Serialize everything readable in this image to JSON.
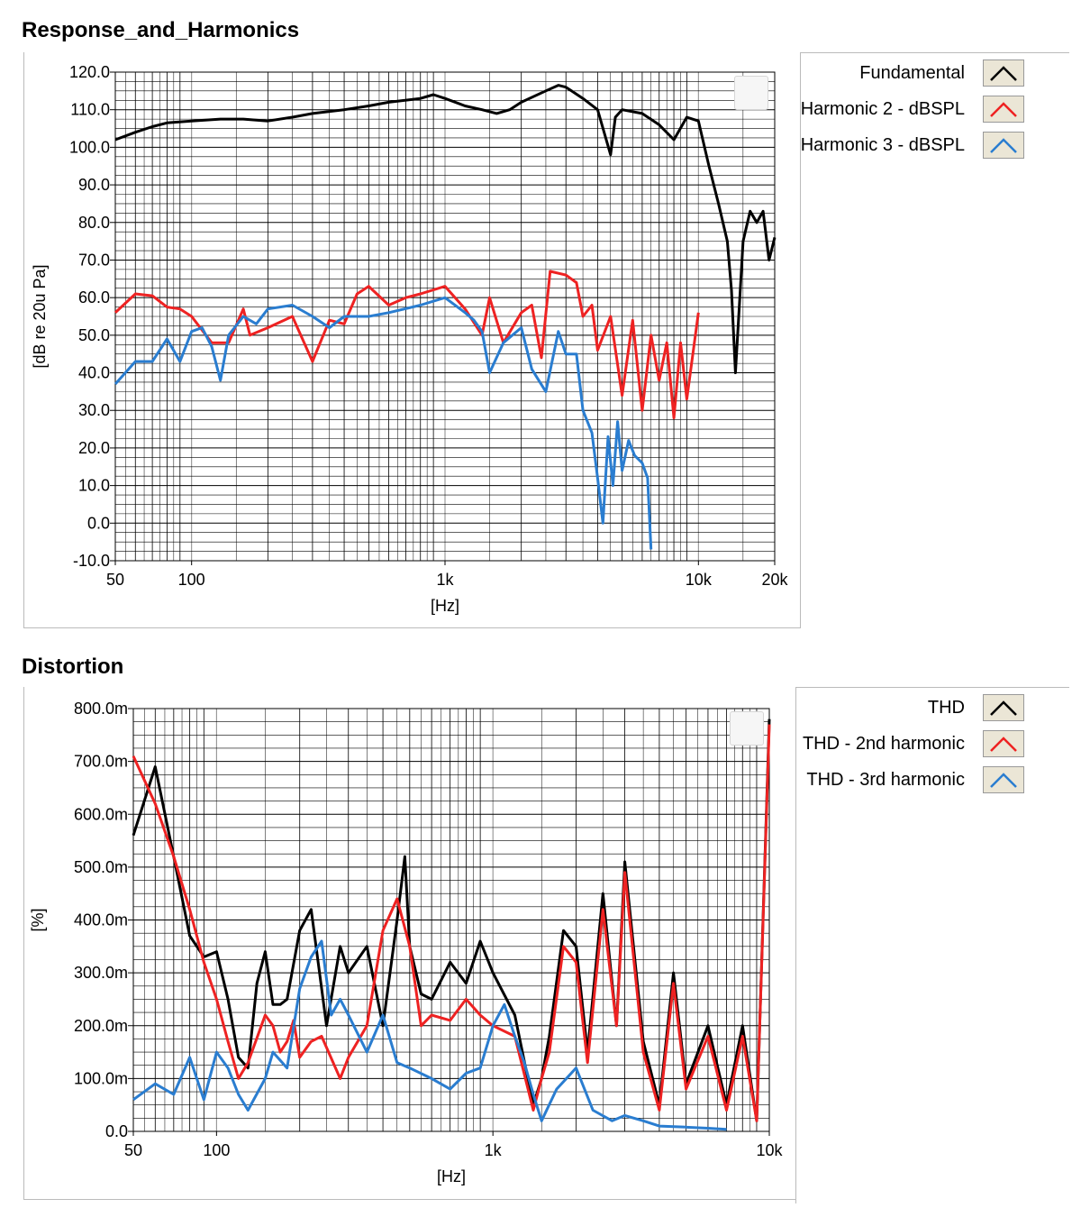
{
  "colors": {
    "black": "#000000",
    "red": "#ee2222",
    "blue": "#2a7dd0",
    "grid": "#000000"
  },
  "charts": [
    {
      "title": "Response_and_Harmonics",
      "ylabel": "[dB re 20u Pa]",
      "xlabel": "[Hz]",
      "legend": [
        "Fundamental",
        "Harmonic 2 - dBSPL",
        "Harmonic 3 - dBSPL"
      ]
    },
    {
      "title": "Distortion",
      "ylabel": "[%]",
      "xlabel": "[Hz]",
      "legend": [
        "THD",
        "THD - 2nd harmonic",
        "THD - 3rd harmonic"
      ]
    }
  ],
  "chart_data": [
    {
      "type": "line",
      "title": "Response_and_Harmonics",
      "xlabel": "[Hz]",
      "ylabel": "[dB re 20u Pa]",
      "xscale": "log",
      "xlim": [
        50,
        20000
      ],
      "ylim": [
        -10,
        120
      ],
      "xticks": [
        50,
        100,
        1000,
        10000,
        20000
      ],
      "xtick_labels": [
        "50",
        "100",
        "1k",
        "10k",
        "20k"
      ],
      "yticks": [
        -10,
        0,
        10,
        20,
        30,
        40,
        50,
        60,
        70,
        80,
        90,
        100,
        110,
        120
      ],
      "ytick_labels": [
        "-10.0",
        "0.0",
        "10.0",
        "20.0",
        "30.0",
        "40.0",
        "50.0",
        "60.0",
        "70.0",
        "80.0",
        "90.0",
        "100.0",
        "110.0",
        "120.0"
      ],
      "grid": true,
      "legend_position": "right",
      "series": [
        {
          "name": "Fundamental",
          "color": "#000000",
          "x": [
            50,
            60,
            70,
            80,
            100,
            130,
            160,
            200,
            250,
            300,
            400,
            500,
            600,
            800,
            900,
            1000,
            1200,
            1400,
            1600,
            1800,
            2000,
            2500,
            2800,
            3000,
            3500,
            4000,
            4500,
            4700,
            5000,
            6000,
            7000,
            8000,
            9000,
            10000,
            11000,
            12000,
            13000,
            13500,
            14000,
            15000,
            16000,
            17000,
            18000,
            19000,
            20000
          ],
          "y": [
            102,
            104,
            105.5,
            106.5,
            107,
            107.5,
            107.5,
            107,
            108,
            109,
            110,
            111,
            112,
            113,
            114,
            113,
            111,
            110,
            109,
            110,
            112,
            115,
            116.5,
            116,
            113,
            110,
            98,
            108,
            110,
            109,
            106,
            102,
            108,
            107,
            95,
            85,
            75,
            62,
            40,
            75,
            83,
            80,
            83,
            70,
            76
          ]
        },
        {
          "name": "Harmonic 2 - dBSPL",
          "color": "#ee2222",
          "x": [
            50,
            60,
            70,
            80,
            90,
            100,
            120,
            140,
            160,
            170,
            200,
            250,
            300,
            350,
            400,
            450,
            500,
            600,
            700,
            800,
            1000,
            1200,
            1400,
            1500,
            1700,
            2000,
            2200,
            2400,
            2600,
            3000,
            3300,
            3500,
            3800,
            4000,
            4500,
            5000,
            5500,
            6000,
            6500,
            7000,
            7500,
            8000,
            8500,
            9000,
            10000
          ],
          "y": [
            56,
            61,
            60.5,
            57.5,
            57,
            55,
            48,
            48,
            57,
            50,
            52,
            55,
            43,
            54,
            53,
            61,
            63,
            58,
            60,
            61,
            63,
            57,
            50,
            60,
            48,
            56,
            58,
            44,
            67,
            66,
            64,
            55,
            58,
            46,
            55,
            34,
            54,
            30,
            50,
            38,
            48,
            28,
            48,
            33,
            56
          ]
        },
        {
          "name": "Harmonic 3 - dBSPL",
          "color": "#2a7dd0",
          "x": [
            50,
            60,
            70,
            80,
            90,
            100,
            110,
            120,
            130,
            140,
            160,
            180,
            200,
            250,
            300,
            350,
            400,
            500,
            600,
            800,
            1000,
            1200,
            1300,
            1400,
            1500,
            1700,
            2000,
            2200,
            2500,
            2800,
            3000,
            3300,
            3500,
            3800,
            4000,
            4200,
            4400,
            4600,
            4800,
            5000,
            5300,
            5600,
            6000,
            6300,
            6500
          ],
          "y": [
            37,
            43,
            43,
            49,
            43,
            51,
            52,
            47,
            38,
            50,
            55,
            53,
            57,
            58,
            55,
            52,
            55,
            55,
            56,
            58,
            60,
            56,
            54,
            51,
            40,
            48,
            52,
            41,
            35,
            51,
            45,
            45,
            30,
            24,
            12,
            0,
            23,
            10,
            27,
            14,
            22,
            18,
            16,
            12,
            -7
          ]
        }
      ]
    },
    {
      "type": "line",
      "title": "Distortion",
      "xlabel": "[Hz]",
      "ylabel": "[%]",
      "xscale": "log",
      "xlim": [
        50,
        10000
      ],
      "ylim": [
        0,
        0.8
      ],
      "xticks": [
        50,
        100,
        1000,
        10000
      ],
      "xtick_labels": [
        "50",
        "100",
        "1k",
        "10k"
      ],
      "yticks": [
        0,
        0.1,
        0.2,
        0.3,
        0.4,
        0.5,
        0.6,
        0.7,
        0.8
      ],
      "ytick_labels": [
        "0.0",
        "100.0m",
        "200.0m",
        "300.0m",
        "400.0m",
        "500.0m",
        "600.0m",
        "700.0m",
        "800.0m"
      ],
      "grid": true,
      "legend_position": "right",
      "series": [
        {
          "name": "THD",
          "color": "#000000",
          "x": [
            50,
            60,
            70,
            80,
            90,
            100,
            110,
            120,
            130,
            140,
            150,
            160,
            170,
            180,
            200,
            220,
            250,
            280,
            300,
            350,
            400,
            450,
            480,
            500,
            550,
            600,
            700,
            800,
            900,
            1000,
            1200,
            1400,
            1500,
            1600,
            1800,
            2000,
            2200,
            2500,
            2800,
            3000,
            3500,
            4000,
            4500,
            5000,
            6000,
            7000,
            8000,
            9000,
            10000
          ],
          "y": [
            0.56,
            0.69,
            0.52,
            0.37,
            0.33,
            0.34,
            0.25,
            0.14,
            0.12,
            0.28,
            0.34,
            0.24,
            0.24,
            0.25,
            0.38,
            0.42,
            0.2,
            0.35,
            0.3,
            0.35,
            0.2,
            0.4,
            0.52,
            0.35,
            0.26,
            0.25,
            0.32,
            0.28,
            0.36,
            0.3,
            0.22,
            0.05,
            0.1,
            0.18,
            0.38,
            0.35,
            0.15,
            0.45,
            0.2,
            0.51,
            0.17,
            0.05,
            0.3,
            0.09,
            0.2,
            0.05,
            0.2,
            0.02,
            0.78
          ]
        },
        {
          "name": "THD - 2nd harmonic",
          "color": "#ee2222",
          "x": [
            50,
            60,
            70,
            80,
            90,
            100,
            110,
            120,
            130,
            150,
            160,
            170,
            180,
            190,
            200,
            220,
            240,
            280,
            300,
            350,
            400,
            450,
            500,
            550,
            600,
            700,
            800,
            900,
            1000,
            1200,
            1400,
            1500,
            1600,
            1800,
            2000,
            2200,
            2500,
            2800,
            3000,
            3500,
            4000,
            4500,
            5000,
            6000,
            7000,
            8000,
            9000,
            10000
          ],
          "y": [
            0.71,
            0.62,
            0.52,
            0.42,
            0.32,
            0.25,
            0.17,
            0.1,
            0.13,
            0.22,
            0.2,
            0.15,
            0.17,
            0.21,
            0.14,
            0.17,
            0.18,
            0.1,
            0.14,
            0.2,
            0.38,
            0.44,
            0.35,
            0.2,
            0.22,
            0.21,
            0.25,
            0.22,
            0.2,
            0.18,
            0.04,
            0.1,
            0.15,
            0.35,
            0.32,
            0.13,
            0.42,
            0.2,
            0.49,
            0.15,
            0.04,
            0.28,
            0.08,
            0.18,
            0.04,
            0.18,
            0.02,
            0.77
          ]
        },
        {
          "name": "THD - 3rd harmonic",
          "color": "#2a7dd0",
          "x": [
            50,
            60,
            70,
            80,
            90,
            100,
            110,
            120,
            130,
            150,
            160,
            180,
            200,
            220,
            240,
            260,
            280,
            300,
            350,
            400,
            450,
            500,
            600,
            700,
            800,
            900,
            1000,
            1100,
            1200,
            1300,
            1400,
            1500,
            1700,
            2000,
            2300,
            2700,
            3000,
            3500,
            4000,
            5000,
            6000,
            7000
          ],
          "y": [
            0.06,
            0.09,
            0.07,
            0.14,
            0.06,
            0.15,
            0.12,
            0.07,
            0.04,
            0.1,
            0.15,
            0.12,
            0.27,
            0.33,
            0.36,
            0.22,
            0.25,
            0.22,
            0.15,
            0.22,
            0.13,
            0.12,
            0.1,
            0.08,
            0.11,
            0.12,
            0.2,
            0.24,
            0.18,
            0.13,
            0.07,
            0.02,
            0.08,
            0.12,
            0.04,
            0.02,
            0.03,
            0.02,
            0.01,
            0.008,
            0.006,
            0.004
          ]
        }
      ]
    }
  ]
}
